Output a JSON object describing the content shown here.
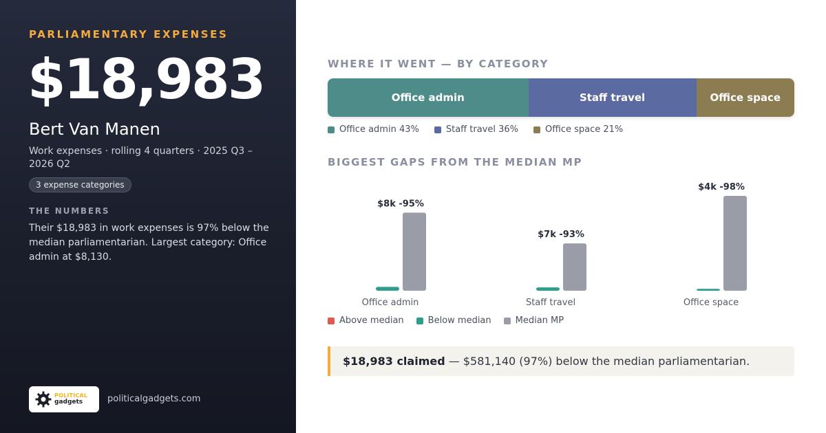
{
  "left": {
    "eyebrow": "PARLIAMENTARY EXPENSES",
    "total": "$18,983",
    "name": "Bert Van Manen",
    "subtitle": "Work expenses · rolling 4 quarters · 2025 Q3 – 2026 Q2",
    "badge": "3 expense categories",
    "numbers_heading": "THE NUMBERS",
    "numbers_text": "Their $18,983 in work expenses is 97% below the median parliamentarian. Largest category: Office admin at $8,130.",
    "logo_word1": "POLITICAL",
    "logo_word2": "gadgets",
    "site": "politicalgadgets.com"
  },
  "sections": {
    "category_title": "WHERE IT WENT — BY CATEGORY",
    "gaps_title": "BIGGEST GAPS FROM THE MEDIAN MP"
  },
  "colors": {
    "office_admin": "#4e8c8a",
    "staff_travel": "#5b6aa0",
    "office_space": "#8c7c52",
    "above_median": "#e05a4f",
    "below_median": "#2e9e8c",
    "median_mp": "#9a9ca8",
    "accent": "#f2ab3c"
  },
  "chart_data": [
    {
      "type": "bar",
      "stacked": true,
      "title": "WHERE IT WENT — BY CATEGORY",
      "categories": [
        "Office admin",
        "Staff travel",
        "Office space"
      ],
      "values": [
        43,
        36,
        21
      ],
      "unit": "%",
      "legend": [
        "Office admin 43%",
        "Staff travel 36%",
        "Office space 21%"
      ]
    },
    {
      "type": "bar",
      "title": "BIGGEST GAPS FROM THE MEDIAN MP",
      "categories": [
        "Office admin",
        "Staff travel",
        "Office space"
      ],
      "series": [
        {
          "name": "Below median",
          "values": [
            8130,
            6900,
            3950
          ]
        },
        {
          "name": "Median MP",
          "values": [
            162600,
            98600,
            197500
          ]
        }
      ],
      "data_labels": [
        "$8k -95%",
        "$7k -93%",
        "$4k -98%"
      ],
      "legend": [
        "Above median",
        "Below median",
        "Median MP"
      ]
    }
  ],
  "callout": {
    "strong": "$18,983 claimed",
    "rest": " — $581,140 (97%) below the median parliamentarian."
  }
}
